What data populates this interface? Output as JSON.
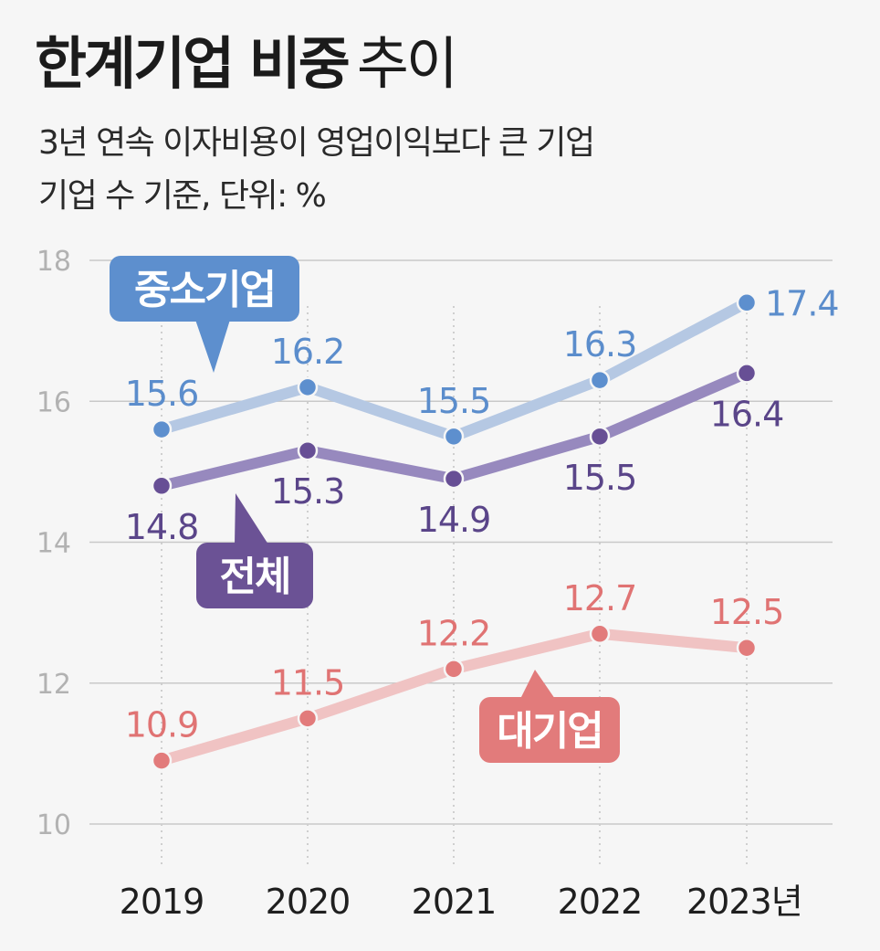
{
  "header": {
    "title_bold": "한계기업 비중",
    "title_light": "추이",
    "subtitle_line1": "3년 연속 이자비용이 영업이익보다 큰 기업",
    "subtitle_line2": "기업 수 기준, 단위: %"
  },
  "chart_data": {
    "type": "line",
    "title": "한계기업 비중 추이",
    "unit": "%",
    "categories": [
      "2019",
      "2020",
      "2021",
      "2022",
      "2023년"
    ],
    "ylim": [
      10,
      18
    ],
    "yticks": [
      "10",
      "12",
      "14",
      "16",
      "18"
    ],
    "grid": true,
    "series": [
      {
        "name": "중소기업",
        "values": [
          15.6,
          16.2,
          15.5,
          16.3,
          17.4
        ],
        "labels": [
          "15.6",
          "16.2",
          "15.5",
          "16.3",
          "17.4"
        ],
        "line_color": "#b5c8e3",
        "point_color": "#5d8fce",
        "label_color": "#5b8dcc",
        "badge_color": "#5d8fce",
        "label_positions": [
          "above",
          "above",
          "above",
          "above",
          "right"
        ]
      },
      {
        "name": "전체",
        "values": [
          14.8,
          15.3,
          14.9,
          15.5,
          16.4
        ],
        "labels": [
          "14.8",
          "15.3",
          "14.9",
          "15.5",
          "16.4"
        ],
        "line_color": "#9789be",
        "point_color": "#674f95",
        "label_color": "#5a4589",
        "badge_color": "#6b5295",
        "label_positions": [
          "below",
          "below",
          "below",
          "below",
          "below"
        ]
      },
      {
        "name": "대기업",
        "values": [
          10.9,
          11.5,
          12.2,
          12.7,
          12.5
        ],
        "labels": [
          "10.9",
          "11.5",
          "12.2",
          "12.7",
          "12.5"
        ],
        "line_color": "#f0c3c3",
        "point_color": "#e27b7b",
        "label_color": "#e07373",
        "badge_color": "#e27b7b",
        "label_positions": [
          "above",
          "above",
          "above",
          "above",
          "above"
        ]
      }
    ]
  }
}
